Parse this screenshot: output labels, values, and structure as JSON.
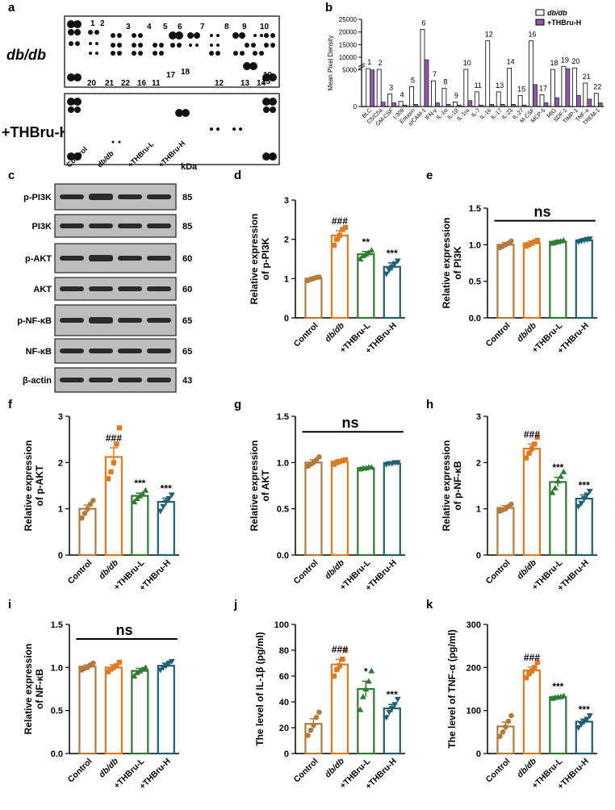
{
  "panel_letters": [
    "a",
    "b",
    "c",
    "d",
    "e",
    "f",
    "g",
    "h",
    "i",
    "j",
    "k"
  ],
  "panel_a": {
    "row_labels": [
      "db/db",
      "+THBru-H"
    ],
    "spot_numbers": [
      "1",
      "2",
      "20",
      "21",
      "22",
      "16",
      "3",
      "4",
      "5",
      "11",
      "17",
      "6",
      "18",
      "7",
      "8",
      "12",
      "9",
      "13",
      "10",
      "14",
      "19",
      "15"
    ]
  },
  "panel_c": {
    "group_labels": [
      "Control",
      "db/db",
      "+THBru-L",
      "+THBru-H"
    ],
    "kda_header": "kDa",
    "bands": [
      {
        "name": "p-PI3K",
        "kda": "85"
      },
      {
        "name": "PI3K",
        "kda": "85"
      },
      {
        "name": "p-AKT",
        "kda": "60"
      },
      {
        "name": "AKT",
        "kda": "60"
      },
      {
        "name": "p-NF-κB",
        "kda": "65"
      },
      {
        "name": "NF-κB",
        "kda": "65"
      },
      {
        "name": "β-actin",
        "kda": "43"
      }
    ]
  },
  "colors": {
    "control": "#b47a3c",
    "dbdb": "#e07a1f",
    "thbru_l": "#2e7d32",
    "thbru_h": "#1e5f74",
    "thbru_purple": "#8e5aa8"
  },
  "chart_data": [
    {
      "panel": "b",
      "type": "bar",
      "ylabel": "Mean Pixel Density",
      "yticks": [
        "0",
        "5000",
        "10000",
        "15000",
        "20000",
        "25000"
      ],
      "ylim": [
        0,
        25000
      ],
      "axis_break": true,
      "categories": [
        "BLC",
        "C5/C5a",
        "GM-CSF",
        "I-309",
        "Eotaxin",
        "sICAM-1",
        "IFN-γ",
        "IL-1α",
        "IL-1β",
        "IL-1ra",
        "IL-7",
        "IL-16",
        "IL-17",
        "IL-23",
        "IL-27",
        "M-CSF",
        "MCP-5",
        "MIG",
        "SDF-1",
        "TIMP-1",
        "TNF-a",
        "TREM-1"
      ],
      "bar_numbers": [
        "1",
        "2",
        "3",
        "4",
        "5",
        "6",
        "7",
        "8",
        "9",
        "10",
        "11",
        "12",
        "13",
        "14",
        "15",
        "16",
        "17",
        "18",
        "19",
        "20",
        "21",
        "22"
      ],
      "series": [
        {
          "name": "db/db",
          "values": [
            5500,
            5200,
            1700,
            700,
            2700,
            21000,
            3500,
            2500,
            600,
            5200,
            2000,
            16500,
            2000,
            5700,
            1500,
            16500,
            1600,
            5200,
            6400,
            5800,
            3200,
            1800
          ]
        },
        {
          "name": "+THBru-H",
          "values": [
            5000,
            600,
            500,
            200,
            300,
            9000,
            500,
            300,
            200,
            800,
            200,
            300,
            300,
            300,
            200,
            3000,
            500,
            1200,
            5500,
            1500,
            1000,
            500
          ]
        }
      ],
      "legend_position": "top-right"
    },
    {
      "panel": "d",
      "type": "bar",
      "ylabel": [
        "Relative expression",
        "of p-PI3K"
      ],
      "categories": [
        "Control",
        "db/db",
        "+THBru-L",
        "+THBru-H"
      ],
      "yticks": [
        "0",
        "1",
        "2",
        "3"
      ],
      "ylim": [
        0,
        3
      ],
      "values": [
        1.0,
        2.1,
        1.62,
        1.3
      ],
      "errors": [
        0.04,
        0.12,
        0.07,
        0.1
      ],
      "points": [
        [
          0.95,
          0.98,
          1.0,
          1.03,
          1.04
        ],
        [
          1.85,
          2.0,
          2.1,
          2.25,
          2.3
        ],
        [
          1.5,
          1.58,
          1.62,
          1.66,
          1.72
        ],
        [
          1.12,
          1.22,
          1.3,
          1.38,
          1.45
        ]
      ],
      "annotations": [
        "",
        "###",
        "**",
        "***"
      ]
    },
    {
      "panel": "e",
      "type": "bar",
      "ylabel": [
        "Relative expression",
        "of PI3K"
      ],
      "categories": [
        "Control",
        "db/db",
        "+THBru-L",
        "+THBru-H"
      ],
      "yticks": [
        "0.0",
        "0.5",
        "1.0",
        "1.5"
      ],
      "ylim": [
        0,
        1.5
      ],
      "values": [
        1.0,
        1.02,
        1.04,
        1.06
      ],
      "errors": [
        0.03,
        0.03,
        0.02,
        0.02
      ],
      "points": [
        [
          0.96,
          0.98,
          1.0,
          1.02,
          1.05
        ],
        [
          0.98,
          1.0,
          1.02,
          1.04,
          1.06
        ],
        [
          1.02,
          1.03,
          1.04,
          1.05,
          1.06
        ],
        [
          1.04,
          1.05,
          1.06,
          1.07,
          1.08
        ]
      ],
      "annotations": [
        "",
        "",
        "",
        ""
      ],
      "ns": "ns"
    },
    {
      "panel": "f",
      "type": "bar",
      "ylabel": [
        "Relative expression",
        "of p-AKT"
      ],
      "categories": [
        "Control",
        "db/db",
        "+THBru-L",
        "+THBru-H"
      ],
      "yticks": [
        "0",
        "1",
        "2",
        "3"
      ],
      "ylim": [
        0,
        3
      ],
      "values": [
        1.0,
        2.12,
        1.28,
        1.15
      ],
      "errors": [
        0.08,
        0.2,
        0.06,
        0.08
      ],
      "points": [
        [
          0.8,
          0.9,
          1.0,
          1.1,
          1.18
        ],
        [
          1.65,
          1.8,
          2.0,
          2.4,
          2.75
        ],
        [
          1.15,
          1.22,
          1.28,
          1.32,
          1.4
        ],
        [
          0.95,
          1.05,
          1.15,
          1.22,
          1.3
        ]
      ],
      "annotations": [
        "",
        "###",
        "***",
        "***"
      ]
    },
    {
      "panel": "g",
      "type": "bar",
      "ylabel": [
        "Relative expression",
        "of AKT"
      ],
      "categories": [
        "Control",
        "db/db",
        "+THBru-L",
        "+THBru-H"
      ],
      "yticks": [
        "0.0",
        "0.5",
        "1.0",
        "1.5"
      ],
      "ylim": [
        0,
        1.5
      ],
      "values": [
        1.0,
        1.01,
        0.94,
        0.99
      ],
      "errors": [
        0.03,
        0.02,
        0.01,
        0.01
      ],
      "points": [
        [
          0.96,
          0.98,
          1.0,
          1.03,
          1.06
        ],
        [
          0.98,
          1.0,
          1.01,
          1.02,
          1.03
        ],
        [
          0.93,
          0.94,
          0.94,
          0.95,
          0.95
        ],
        [
          0.98,
          0.99,
          0.99,
          1.0,
          1.0
        ]
      ],
      "annotations": [
        "",
        "",
        "",
        ""
      ],
      "ns": "ns"
    },
    {
      "panel": "h",
      "type": "bar",
      "ylabel": [
        "Relative expression",
        "of p-NF-κB"
      ],
      "categories": [
        "Control",
        "db/db",
        "+THBru-L",
        "+THBru-H"
      ],
      "yticks": [
        "0",
        "1",
        "2",
        "3"
      ],
      "ylim": [
        0,
        3
      ],
      "values": [
        1.02,
        2.3,
        1.58,
        1.22
      ],
      "errors": [
        0.05,
        0.1,
        0.1,
        0.08
      ],
      "points": [
        [
          0.95,
          0.98,
          1.0,
          1.05,
          1.1
        ],
        [
          2.1,
          2.2,
          2.3,
          2.4,
          2.55
        ],
        [
          1.35,
          1.45,
          1.6,
          1.7,
          1.8
        ],
        [
          1.05,
          1.12,
          1.22,
          1.3,
          1.38
        ]
      ],
      "annotations": [
        "",
        "###",
        "***",
        "***"
      ]
    },
    {
      "panel": "i",
      "type": "bar",
      "ylabel": [
        "Relative expression",
        "of NF-κB"
      ],
      "categories": [
        "Control",
        "db/db",
        "+THBru-L",
        "+THBru-H"
      ],
      "yticks": [
        "0.0",
        "0.5",
        "1.0",
        "1.5"
      ],
      "ylim": [
        0,
        1.5
      ],
      "values": [
        1.01,
        1.0,
        0.96,
        1.02
      ],
      "errors": [
        0.02,
        0.03,
        0.03,
        0.03
      ],
      "points": [
        [
          0.97,
          0.99,
          1.0,
          1.03,
          1.05
        ],
        [
          0.95,
          0.98,
          1.0,
          1.02,
          1.06
        ],
        [
          0.9,
          0.94,
          0.96,
          0.98,
          1.0
        ],
        [
          0.97,
          1.0,
          1.02,
          1.05,
          1.07
        ]
      ],
      "annotations": [
        "",
        "",
        "",
        ""
      ],
      "ns": "ns"
    },
    {
      "panel": "j",
      "type": "bar",
      "ylabel": [
        "The level of IL-1β (pg/ml)"
      ],
      "categories": [
        "Control",
        "db/db",
        "+THBru-L",
        "+THBru-H"
      ],
      "yticks": [
        "0",
        "20",
        "40",
        "60",
        "80",
        "100"
      ],
      "ylim": [
        0,
        100
      ],
      "values": [
        23,
        69,
        50,
        35
      ],
      "errors": [
        4,
        4,
        6,
        3
      ],
      "points": [
        [
          14,
          18,
          22,
          28,
          32
        ],
        [
          60,
          65,
          68,
          73,
          80
        ],
        [
          34,
          44,
          50,
          56,
          64
        ],
        [
          28,
          32,
          35,
          38,
          42
        ]
      ],
      "annotations": [
        "",
        "###",
        "*",
        "***"
      ]
    },
    {
      "panel": "k",
      "type": "bar",
      "ylabel": [
        "The level of TNF-α (pg/ml)"
      ],
      "categories": [
        "Control",
        "db/db",
        "+THBru-L",
        "+THBru-H"
      ],
      "yticks": [
        "0",
        "100",
        "200",
        "300"
      ],
      "ylim": [
        0,
        300
      ],
      "values": [
        63,
        193,
        131,
        74
      ],
      "errors": [
        10,
        8,
        2,
        6
      ],
      "points": [
        [
          40,
          50,
          62,
          75,
          88
        ],
        [
          176,
          185,
          192,
          200,
          212
        ],
        [
          128,
          130,
          131,
          132,
          134
        ],
        [
          60,
          68,
          74,
          80,
          88
        ]
      ],
      "annotations": [
        "",
        "###",
        "***",
        "***"
      ]
    }
  ]
}
